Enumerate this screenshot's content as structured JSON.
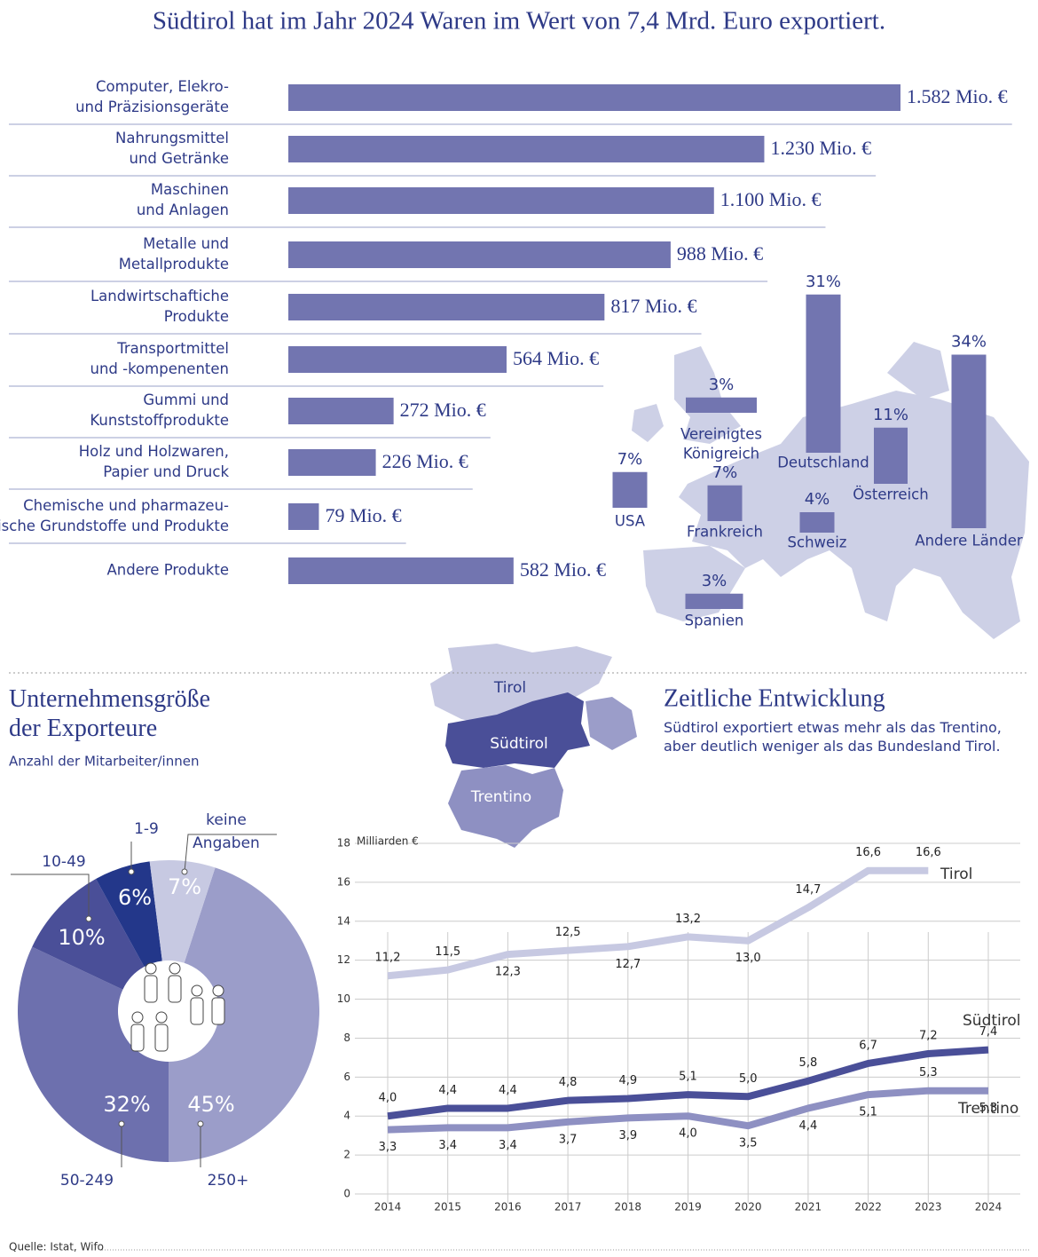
{
  "title": "Südtirol hat im Jahr 2024 Waren im Wert von 7,4 Mrd. Euro exportiert.",
  "source": "Quelle: Istat, Wifo",
  "map": {
    "labels": [
      "Tirol",
      "Südtirol",
      "Trentino"
    ]
  },
  "chart_data": [
    {
      "type": "bar",
      "horizontal": true,
      "color": "#7275b0",
      "categories": [
        [
          "Computer, Elekro-",
          "und Präzisionsgeräte"
        ],
        [
          "Nahrungsmittel",
          "und Getränke"
        ],
        [
          "Maschinen",
          "und Anlagen"
        ],
        [
          "Metalle und",
          "Metallprodukte"
        ],
        [
          "Landwirtschaftiche",
          "Produkte"
        ],
        [
          "Transportmittel",
          "und -kompenenten"
        ],
        [
          "Gummi und",
          "Kunststoffprodukte"
        ],
        [
          "Holz und Holzwaren,",
          "Papier und Druck"
        ],
        [
          "Chemische und pharmazeu-",
          "tische Grundstoffe und Produkte"
        ],
        [
          "Andere Produkte"
        ]
      ],
      "values": [
        1582,
        1230,
        1100,
        988,
        817,
        564,
        272,
        226,
        79,
        582
      ],
      "value_labels": [
        "1.582 Mio. €",
        "1.230 Mio. €",
        "1.100 Mio. €",
        "988 Mio. €",
        "817 Mio. €",
        "564 Mio. €",
        "272 Mio. €",
        "226 Mio. €",
        "79 Mio. €",
        "582 Mio. €"
      ]
    },
    {
      "type": "bar",
      "color": "#7275b0",
      "categories": [
        [
          "Deutschland"
        ],
        [
          "Andere Länder"
        ],
        [
          "Österreich"
        ],
        [
          "Vereinigtes",
          "Königreich"
        ],
        [
          "USA"
        ],
        [
          "Frankreich"
        ],
        [
          "Schweiz"
        ],
        [
          "Spanien"
        ]
      ],
      "values": [
        31,
        34,
        11,
        3,
        7,
        7,
        4,
        3
      ],
      "value_labels": [
        "31%",
        "34%",
        "11%",
        "3%",
        "7%",
        "7%",
        "4%",
        "3%"
      ]
    },
    {
      "type": "pie",
      "title": [
        "Unternehmensgröße",
        "der Exporteure"
      ],
      "subtitle": "Anzahl der Mitarbeiter/innen",
      "categories": [
        [
          "250+"
        ],
        [
          "50-249"
        ],
        [
          "10-49"
        ],
        [
          "1-9"
        ],
        [
          "keine",
          "Angaben"
        ]
      ],
      "values": [
        45,
        32,
        10,
        6,
        7
      ],
      "value_labels": [
        "45%",
        "32%",
        "10%",
        "6%",
        "7%"
      ],
      "colors": [
        "#9b9dc9",
        "#6d70ae",
        "#4a4f98",
        "#23378a",
        "#c7c9e2"
      ]
    },
    {
      "type": "line",
      "title": "Zeitliche Entwicklung",
      "subtitle": [
        "Südtirol exportiert etwas mehr als das Trentino,",
        "aber deutlich weniger als das Bundesland Tirol."
      ],
      "y_label": "Milliarden €",
      "categories": [
        "2014",
        "2015",
        "2016",
        "2017",
        "2018",
        "2019",
        "2020",
        "2021",
        "2022",
        "2023",
        "2024"
      ],
      "ylim": [
        0,
        18
      ],
      "yticks": [
        0,
        2,
        4,
        6,
        8,
        10,
        12,
        14,
        16,
        18
      ],
      "grid": true,
      "series": [
        {
          "name": "Tirol",
          "color": "#c7c9e2",
          "values": [
            11.2,
            11.5,
            12.3,
            12.5,
            12.7,
            13.2,
            13.0,
            14.7,
            16.6,
            16.6,
            null
          ],
          "value_labels": [
            "11,2",
            "11,5",
            "12,3",
            "12,5",
            "12,7",
            "13,2",
            "13,0",
            "14,7",
            "16,6",
            "16,6",
            null
          ]
        },
        {
          "name": "Südtirol",
          "color": "#4a4f98",
          "values": [
            4.0,
            4.4,
            4.4,
            4.8,
            4.9,
            5.1,
            5.0,
            5.8,
            6.7,
            7.2,
            7.4
          ],
          "value_labels": [
            "4,0",
            "4,4",
            "4,4",
            "4,8",
            "4,9",
            "5,1",
            "5,0",
            "5,8",
            "6,7",
            "7,2",
            "7,4"
          ]
        },
        {
          "name": "Trentino",
          "color": "#8e90c2",
          "values": [
            3.3,
            3.4,
            3.4,
            3.7,
            3.9,
            4.0,
            3.5,
            4.4,
            5.1,
            5.3,
            5.3
          ],
          "value_labels": [
            "3,3",
            "3,4",
            "3,4",
            "3,7",
            "3,9",
            "4,0",
            "3,5",
            "4,4",
            "5,1",
            "5,3",
            "5,3"
          ]
        }
      ]
    }
  ]
}
